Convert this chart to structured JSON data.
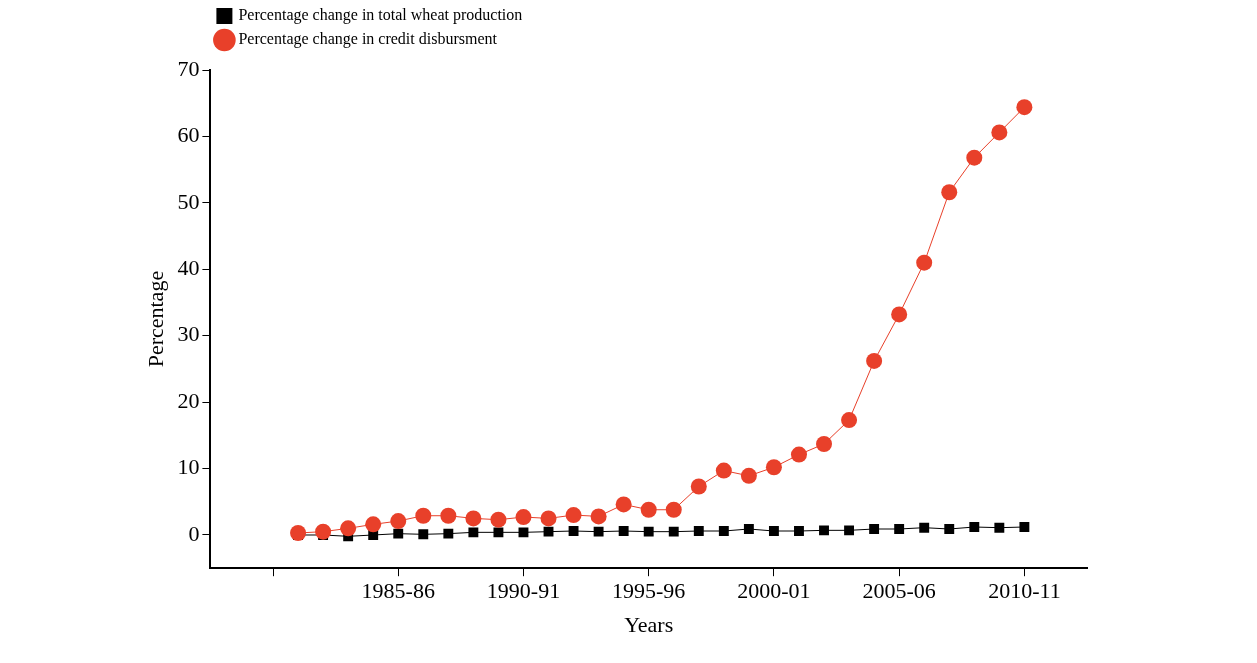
{
  "chart_data": {
    "type": "line",
    "xlabel": "Years",
    "ylabel": "Percentage",
    "categories": [
      null,
      null,
      null,
      null,
      null,
      "1985-86",
      null,
      null,
      null,
      null,
      "1990-91",
      null,
      null,
      null,
      null,
      "1995-96",
      null,
      null,
      null,
      null,
      "2000-01",
      null,
      null,
      null,
      null,
      "2005-06",
      null,
      null,
      null,
      null,
      "2010-11"
    ],
    "series": [
      {
        "name": "Percentage change in total wheat production",
        "color": "#000000",
        "marker": "square",
        "values": [
          null,
          0,
          0,
          -0.2,
          0,
          0.2,
          0.1,
          0.2,
          0.4,
          0.4,
          0.4,
          0.5,
          0.6,
          0.5,
          0.6,
          0.5,
          0.5,
          0.6,
          0.6,
          0.9,
          0.6,
          0.6,
          0.7,
          0.7,
          0.9,
          0.9,
          1.1,
          0.9,
          1.2,
          1.1,
          1.2
        ]
      },
      {
        "name": "Percentage change in credit disbursment",
        "color": "#e8402a",
        "marker": "circle",
        "values": [
          null,
          0.3,
          0.5,
          1.0,
          1.6,
          2.1,
          2.9,
          2.9,
          2.5,
          2.3,
          2.7,
          2.5,
          3.0,
          2.8,
          4.6,
          3.8,
          3.8,
          7.3,
          9.7,
          8.9,
          10.2,
          12.1,
          13.7,
          17.3,
          26.2,
          33.2,
          41.0,
          51.6,
          56.8,
          60.6,
          64.4
        ]
      }
    ],
    "ylim": [
      -5,
      70
    ],
    "yticks": [
      0,
      10,
      20,
      30,
      40,
      50,
      60,
      70
    ],
    "legend": "top left",
    "line_style": "solid"
  }
}
